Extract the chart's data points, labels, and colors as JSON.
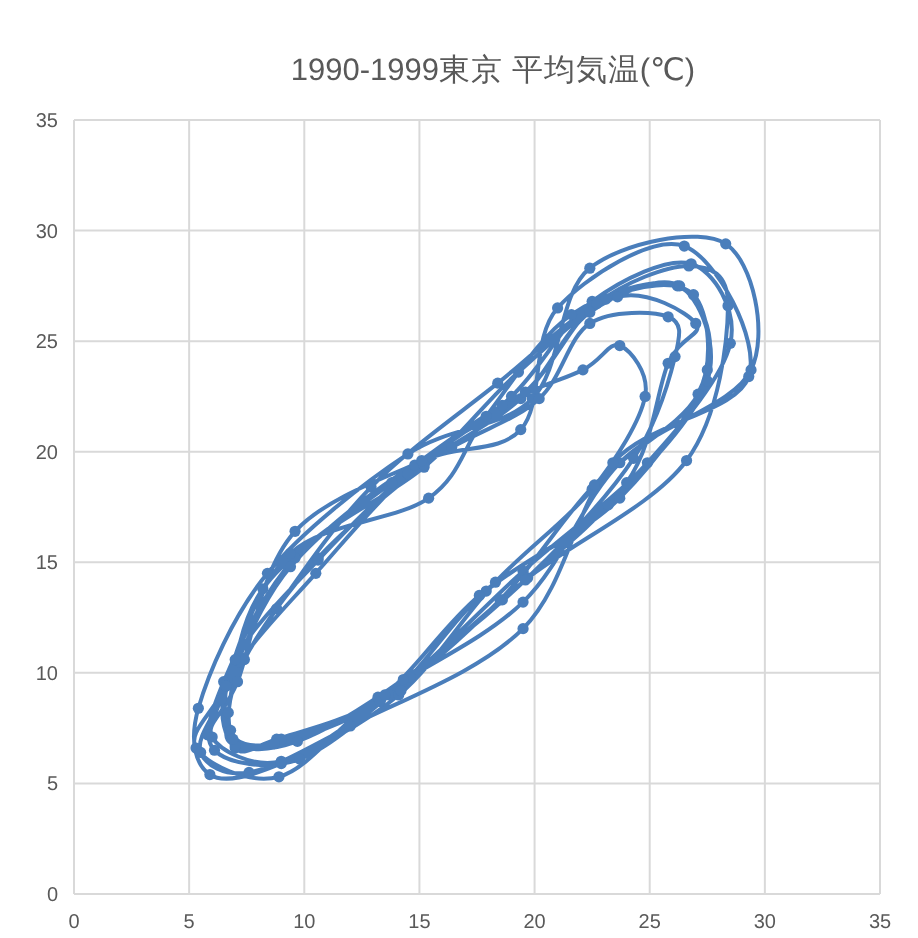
{
  "chart_data": {
    "type": "line",
    "title": "1990-1999東京 平均気温(℃)",
    "series": [
      {
        "color": "#4a7ebb",
        "marker": "circle",
        "x": [
          5.8,
          7.2,
          10.5,
          14.5,
          19.0,
          22.5,
          26.8,
          28.5,
          24.9,
          19.5,
          14.6,
          9.8,
          6.1,
          6.5,
          9.6,
          15.2,
          19.3,
          23.6,
          27.0,
          25.8,
          24.0,
          18.6,
          13.3,
          8.8,
          7.0,
          6.6,
          9.4,
          15.4,
          17.9,
          21.6,
          26.2,
          27.5,
          23.7,
          17.9,
          13.7,
          9.0,
          7.0,
          6.7,
          8.2,
          13.8,
          18.6,
          22.1,
          23.7,
          24.8,
          22.5,
          18.3,
          14.1,
          9.0,
          5.9,
          5.4,
          8.4,
          14.5,
          19.9,
          22.4,
          28.3,
          29.4,
          23.7,
          19.5,
          13.2,
          8.9,
          5.3,
          6.6,
          9.4,
          14.8,
          19.4,
          21.0,
          26.5,
          29.3,
          23.4,
          19.5,
          12.0,
          7.6,
          5.5,
          6.4,
          8.8,
          12.9,
          18.4,
          23.1,
          26.9,
          27.1,
          22.6,
          18.5,
          13.3,
          8.7,
          6.8,
          7.4,
          10.6,
          15.2,
          19.4,
          22.4,
          26.3,
          27.5,
          23.2,
          17.6,
          13.5,
          9.0,
          6.0,
          7.1,
          9.6,
          16.4,
          20.2,
          22.4,
          25.8,
          26.1,
          24.3,
          19.7,
          14.3,
          9.7,
          6.9,
          7.0,
          10.6,
          15.1,
          19.6,
          22.7,
          26.7,
          28.4,
          26.6,
          19.6,
          14.2
        ],
        "values": [
          7.2,
          10.5,
          14.5,
          19.0,
          22.5,
          26.8,
          28.5,
          24.9,
          19.5,
          14.6,
          9.8,
          6.1,
          6.5,
          9.6,
          15.2,
          19.3,
          23.6,
          27.0,
          25.8,
          24.0,
          18.6,
          13.3,
          8.8,
          7.0,
          6.6,
          9.4,
          15.4,
          17.9,
          21.6,
          26.2,
          27.5,
          23.7,
          17.9,
          13.7,
          9.0,
          7.0,
          6.7,
          8.2,
          13.8,
          18.6,
          22.1,
          23.7,
          24.8,
          22.5,
          18.3,
          14.1,
          9.0,
          5.9,
          5.4,
          8.4,
          14.5,
          19.9,
          22.4,
          28.3,
          29.4,
          23.7,
          19.5,
          13.2,
          8.9,
          5.3,
          6.6,
          9.4,
          14.8,
          19.4,
          21.0,
          26.5,
          29.3,
          23.4,
          19.5,
          12.0,
          7.6,
          5.5,
          6.4,
          8.8,
          12.9,
          18.4,
          23.1,
          26.9,
          27.1,
          22.6,
          18.5,
          13.3,
          8.7,
          6.8,
          7.4,
          10.6,
          15.2,
          19.4,
          22.4,
          26.3,
          27.5,
          23.2,
          17.6,
          13.5,
          9.0,
          6.0,
          7.1,
          9.6,
          16.4,
          20.2,
          22.4,
          25.8,
          26.1,
          24.3,
          19.7,
          14.3,
          9.7,
          6.9,
          7.0,
          10.6,
          15.1,
          19.6,
          22.7,
          26.7,
          28.4,
          26.6,
          19.6,
          14.2,
          9.2
        ]
      }
    ],
    "xlim": [
      0,
      35
    ],
    "ylim": [
      0,
      35
    ],
    "xticks": [
      0,
      5,
      10,
      15,
      20,
      25,
      30,
      35
    ],
    "yticks": [
      0,
      5,
      10,
      15,
      20,
      25,
      30,
      35
    ],
    "grid": true
  }
}
